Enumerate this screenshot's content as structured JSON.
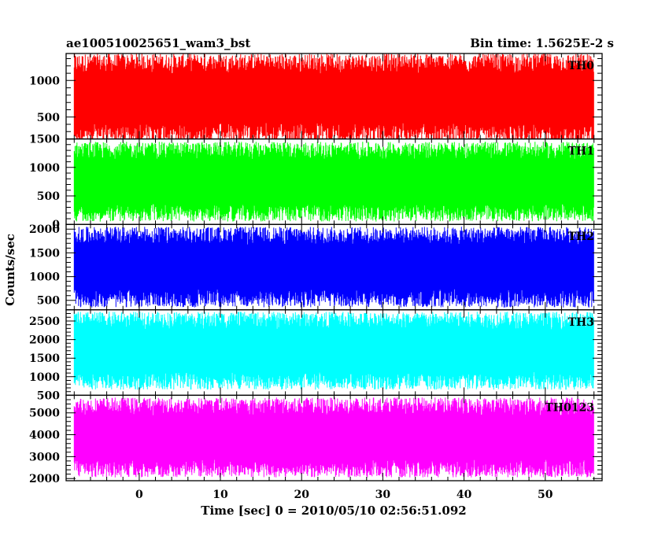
{
  "header": {
    "left_title": "ae100510025651_wam3_bst",
    "right_title": "Bin time: 1.5625E-2 s"
  },
  "chart_data": {
    "type": "line",
    "title": "ae100510025651_wam3_bst",
    "xlabel": "Time [sec] 0 = 2010/05/10 02:56:51.092",
    "ylabel": "Counts/sec",
    "xlim": [
      -9,
      57
    ],
    "x_ticks": [
      0,
      10,
      20,
      30,
      40,
      50
    ],
    "x_tick_labels": [
      "0",
      "10",
      "20",
      "30",
      "40",
      "50"
    ],
    "data_x_range": [
      -8,
      56
    ],
    "bin_time_sec": 0.015625,
    "panels": [
      {
        "name": "TH0",
        "color": "#ff0000",
        "ylim": [
          200,
          1370
        ],
        "y_ticks": [
          500,
          1000
        ],
        "y_tick_labels": [
          "500",
          "1000"
        ],
        "minor_step": 100,
        "typical_range": [
          150,
          1370
        ]
      },
      {
        "name": "TH1",
        "color": "#00ff00",
        "ylim": [
          0,
          1500
        ],
        "y_ticks": [
          0,
          500,
          1000,
          1500
        ],
        "y_tick_labels": [
          "0",
          "500",
          "1000",
          "1500"
        ],
        "minor_step": 100,
        "typical_range": [
          50,
          1450
        ]
      },
      {
        "name": "TH2",
        "color": "#0000ff",
        "ylim": [
          300,
          2100
        ],
        "y_ticks": [
          500,
          1000,
          1500,
          2000
        ],
        "y_tick_labels": [
          "500",
          "1000",
          "1500",
          "2000"
        ],
        "minor_step": 100,
        "typical_range": [
          350,
          2050
        ]
      },
      {
        "name": "TH3",
        "color": "#00ffff",
        "ylim": [
          500,
          2800
        ],
        "y_ticks": [
          500,
          1000,
          1500,
          2000,
          2500
        ],
        "y_tick_labels": [
          "500",
          "1000",
          "1500",
          "2000",
          "2500"
        ],
        "minor_step": 100,
        "typical_range": [
          650,
          2750
        ]
      },
      {
        "name": "TH0123",
        "color": "#ff00ff",
        "ylim": [
          1900,
          5800
        ],
        "y_ticks": [
          2000,
          3000,
          4000,
          5000
        ],
        "y_tick_labels": [
          "2000",
          "3000",
          "4000",
          "5000"
        ],
        "minor_step": 200,
        "typical_range": [
          2050,
          5700
        ]
      }
    ]
  }
}
